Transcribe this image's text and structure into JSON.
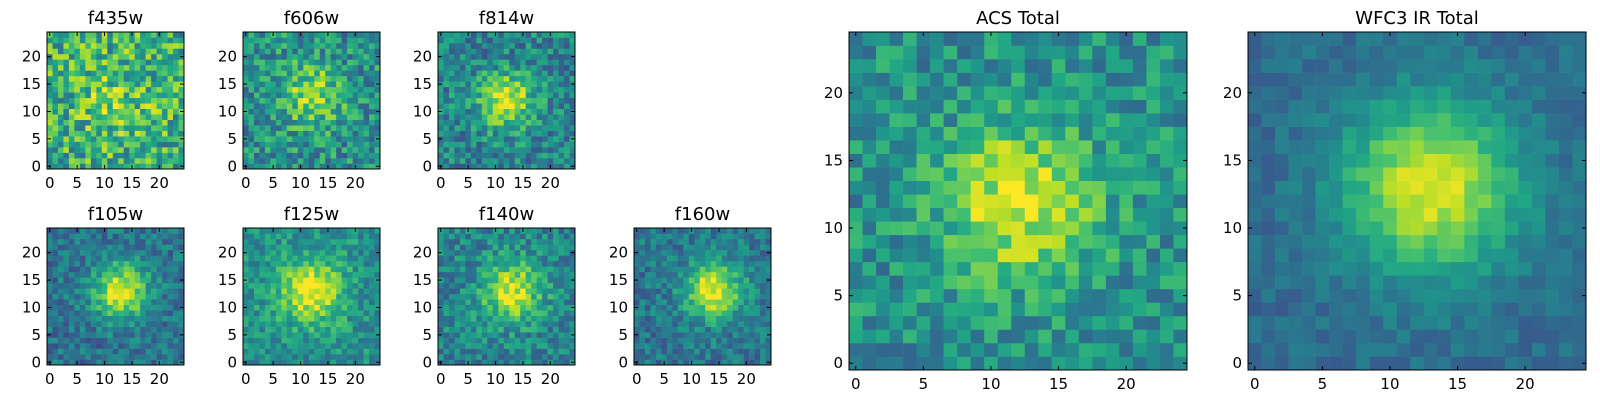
{
  "chart_data": [
    {
      "type": "heatmap",
      "title": "f435w",
      "x_ticks": [
        "0",
        "5",
        "10",
        "15",
        "20"
      ],
      "y_ticks": [
        "0",
        "5",
        "10",
        "15",
        "20"
      ],
      "xlim": [
        -0.5,
        24.5
      ],
      "ylim": [
        -0.5,
        24.5
      ],
      "grid_size": 25,
      "colormap": "viridis",
      "peak": {
        "x": 12,
        "y": 12
      },
      "peak_width": 5,
      "peak_strength": 0.15,
      "noise": 0.55,
      "baseline": 0.62,
      "seed": 11
    },
    {
      "type": "heatmap",
      "title": "f606w",
      "x_ticks": [
        "0",
        "5",
        "10",
        "15",
        "20"
      ],
      "y_ticks": [
        "0",
        "5",
        "10",
        "15",
        "20"
      ],
      "xlim": [
        -0.5,
        24.5
      ],
      "ylim": [
        -0.5,
        24.5
      ],
      "grid_size": 25,
      "colormap": "viridis",
      "peak": {
        "x": 12,
        "y": 13
      },
      "peak_width": 4,
      "peak_strength": 0.35,
      "noise": 0.45,
      "baseline": 0.5,
      "seed": 23
    },
    {
      "type": "heatmap",
      "title": "f814w",
      "x_ticks": [
        "0",
        "5",
        "10",
        "15",
        "20"
      ],
      "y_ticks": [
        "0",
        "5",
        "10",
        "15",
        "20"
      ],
      "xlim": [
        -0.5,
        24.5
      ],
      "ylim": [
        -0.5,
        24.5
      ],
      "grid_size": 25,
      "colormap": "viridis",
      "peak": {
        "x": 12,
        "y": 12
      },
      "peak_width": 3.5,
      "peak_strength": 0.5,
      "noise": 0.4,
      "baseline": 0.45,
      "seed": 37
    },
    {
      "type": "heatmap",
      "title": "f105w",
      "x_ticks": [
        "0",
        "5",
        "10",
        "15",
        "20"
      ],
      "y_ticks": [
        "0",
        "5",
        "10",
        "15",
        "20"
      ],
      "xlim": [
        -0.5,
        24.5
      ],
      "ylim": [
        -0.5,
        24.5
      ],
      "grid_size": 25,
      "colormap": "viridis",
      "peak": {
        "x": 13,
        "y": 13
      },
      "peak_width": 3.5,
      "peak_strength": 0.6,
      "noise": 0.3,
      "baseline": 0.38,
      "seed": 41
    },
    {
      "type": "heatmap",
      "title": "f125w",
      "x_ticks": [
        "0",
        "5",
        "10",
        "15",
        "20"
      ],
      "y_ticks": [
        "0",
        "5",
        "10",
        "15",
        "20"
      ],
      "xlim": [
        -0.5,
        24.5
      ],
      "ylim": [
        -0.5,
        24.5
      ],
      "grid_size": 25,
      "colormap": "viridis",
      "peak": {
        "x": 12,
        "y": 13
      },
      "peak_width": 4,
      "peak_strength": 0.5,
      "noise": 0.32,
      "baseline": 0.5,
      "seed": 53
    },
    {
      "type": "heatmap",
      "title": "f140w",
      "x_ticks": [
        "0",
        "5",
        "10",
        "15",
        "20"
      ],
      "y_ticks": [
        "0",
        "5",
        "10",
        "15",
        "20"
      ],
      "xlim": [
        -0.5,
        24.5
      ],
      "ylim": [
        -0.5,
        24.5
      ],
      "grid_size": 25,
      "colormap": "viridis",
      "peak": {
        "x": 13,
        "y": 13
      },
      "peak_width": 3.8,
      "peak_strength": 0.5,
      "noise": 0.35,
      "baseline": 0.45,
      "seed": 67
    },
    {
      "type": "heatmap",
      "title": "f160w",
      "x_ticks": [
        "0",
        "5",
        "10",
        "15",
        "20"
      ],
      "y_ticks": [
        "0",
        "5",
        "10",
        "15",
        "20"
      ],
      "xlim": [
        -0.5,
        24.5
      ],
      "ylim": [
        -0.5,
        24.5
      ],
      "grid_size": 25,
      "colormap": "viridis",
      "peak": {
        "x": 14,
        "y": 13
      },
      "peak_width": 3.5,
      "peak_strength": 0.6,
      "noise": 0.3,
      "baseline": 0.4,
      "seed": 79
    },
    {
      "type": "heatmap",
      "title": "ACS Total",
      "x_ticks": [
        "0",
        "5",
        "10",
        "15",
        "20"
      ],
      "y_ticks": [
        "0",
        "5",
        "10",
        "15",
        "20"
      ],
      "xlim": [
        -0.5,
        24.5
      ],
      "ylim": [
        -0.5,
        24.5
      ],
      "grid_size": 25,
      "colormap": "viridis",
      "peak": {
        "x": 12,
        "y": 12
      },
      "peak_width": 4,
      "peak_strength": 0.45,
      "noise": 0.35,
      "baseline": 0.5,
      "seed": 97
    },
    {
      "type": "heatmap",
      "title": "WFC3 IR Total",
      "x_ticks": [
        "0",
        "5",
        "10",
        "15",
        "20"
      ],
      "y_ticks": [
        "0",
        "5",
        "10",
        "15",
        "20"
      ],
      "xlim": [
        -0.5,
        24.5
      ],
      "ylim": [
        -0.5,
        24.5
      ],
      "grid_size": 25,
      "colormap": "viridis",
      "peak": {
        "x": 13,
        "y": 13
      },
      "peak_width": 4.5,
      "peak_strength": 0.6,
      "noise": 0.15,
      "baseline": 0.35,
      "seed": 113
    }
  ]
}
